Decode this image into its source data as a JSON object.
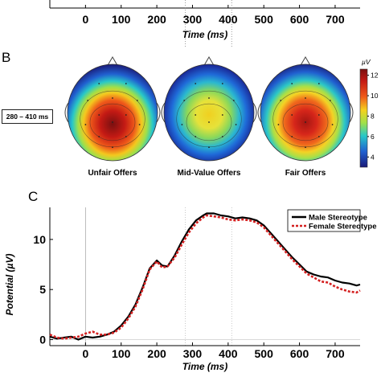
{
  "panel_a": {
    "x_ticks": [
      "0",
      "100",
      "200",
      "300",
      "400",
      "500",
      "600",
      "700"
    ],
    "xlabel": "Time (ms)"
  },
  "panel_b": {
    "letter": "B",
    "window_label": "280 – 410 ms",
    "maps": [
      {
        "label": "Unfair Offers"
      },
      {
        "label": "Mid-Value Offers"
      },
      {
        "label": "Fair Offers"
      }
    ],
    "colorbar": {
      "unit": "µV",
      "ticks": [
        "12",
        "10",
        "8",
        "6",
        "4"
      ],
      "range": [
        3,
        12.6
      ]
    }
  },
  "panel_c": {
    "letter": "C"
  },
  "chart_data": [
    {
      "type": "line",
      "panel": "A",
      "xlabel": "Time (ms)",
      "x_ticks": [
        0,
        100,
        200,
        300,
        400,
        500,
        600,
        700
      ],
      "xlim": [
        -100,
        770
      ],
      "markers": [
        280,
        410
      ]
    },
    {
      "type": "line",
      "panel": "C",
      "xlabel": "Time (ms)",
      "ylabel": "Potential (µV)",
      "xlim": [
        -100,
        770
      ],
      "ylim": [
        -0.6,
        13.2
      ],
      "x_ticks": [
        0,
        100,
        200,
        300,
        400,
        500,
        600,
        700
      ],
      "y_ticks": [
        0,
        5,
        10
      ],
      "markers": [
        0,
        280,
        410
      ],
      "legend_position": "top-right",
      "series": [
        {
          "name": "Male Stereotype",
          "color": "#000000",
          "style": "solid",
          "points": [
            [
              -100,
              0.3
            ],
            [
              -80,
              0.1
            ],
            [
              -60,
              0.2
            ],
            [
              -40,
              0.3
            ],
            [
              -20,
              0.0
            ],
            [
              0,
              0.3
            ],
            [
              20,
              0.2
            ],
            [
              40,
              0.3
            ],
            [
              60,
              0.5
            ],
            [
              80,
              0.8
            ],
            [
              100,
              1.4
            ],
            [
              120,
              2.3
            ],
            [
              140,
              3.5
            ],
            [
              160,
              5.2
            ],
            [
              180,
              7.1
            ],
            [
              200,
              7.9
            ],
            [
              215,
              7.4
            ],
            [
              230,
              7.3
            ],
            [
              250,
              8.4
            ],
            [
              270,
              9.8
            ],
            [
              290,
              11.0
            ],
            [
              310,
              11.9
            ],
            [
              330,
              12.4
            ],
            [
              340,
              12.6
            ],
            [
              360,
              12.6
            ],
            [
              380,
              12.4
            ],
            [
              400,
              12.3
            ],
            [
              420,
              12.1
            ],
            [
              440,
              12.2
            ],
            [
              460,
              12.1
            ],
            [
              480,
              11.9
            ],
            [
              500,
              11.4
            ],
            [
              520,
              10.6
            ],
            [
              540,
              9.8
            ],
            [
              560,
              9.0
            ],
            [
              580,
              8.2
            ],
            [
              600,
              7.5
            ],
            [
              620,
              6.8
            ],
            [
              640,
              6.5
            ],
            [
              660,
              6.3
            ],
            [
              680,
              6.2
            ],
            [
              700,
              5.9
            ],
            [
              720,
              5.7
            ],
            [
              740,
              5.6
            ],
            [
              760,
              5.4
            ],
            [
              770,
              5.5
            ]
          ]
        },
        {
          "name": "Female Stereotype",
          "color": "#d42020",
          "style": "dotted",
          "points": [
            [
              -100,
              0.5
            ],
            [
              -80,
              0.2
            ],
            [
              -60,
              0.1
            ],
            [
              -40,
              0.2
            ],
            [
              -20,
              0.3
            ],
            [
              0,
              0.6
            ],
            [
              20,
              0.8
            ],
            [
              40,
              0.5
            ],
            [
              60,
              0.5
            ],
            [
              80,
              0.7
            ],
            [
              100,
              1.2
            ],
            [
              120,
              2.1
            ],
            [
              140,
              3.3
            ],
            [
              160,
              5.0
            ],
            [
              180,
              7.0
            ],
            [
              200,
              7.8
            ],
            [
              215,
              7.2
            ],
            [
              230,
              7.3
            ],
            [
              250,
              8.2
            ],
            [
              270,
              9.5
            ],
            [
              290,
              10.7
            ],
            [
              310,
              11.6
            ],
            [
              330,
              12.2
            ],
            [
              340,
              12.4
            ],
            [
              360,
              12.3
            ],
            [
              380,
              12.2
            ],
            [
              400,
              12.0
            ],
            [
              420,
              11.9
            ],
            [
              440,
              12.0
            ],
            [
              460,
              11.9
            ],
            [
              480,
              11.7
            ],
            [
              500,
              11.2
            ],
            [
              520,
              10.4
            ],
            [
              540,
              9.6
            ],
            [
              560,
              8.8
            ],
            [
              580,
              8.0
            ],
            [
              600,
              7.3
            ],
            [
              620,
              6.6
            ],
            [
              640,
              6.2
            ],
            [
              660,
              5.8
            ],
            [
              680,
              5.7
            ],
            [
              700,
              5.3
            ],
            [
              720,
              5.0
            ],
            [
              740,
              4.8
            ],
            [
              760,
              4.7
            ],
            [
              770,
              4.9
            ]
          ]
        }
      ]
    }
  ]
}
